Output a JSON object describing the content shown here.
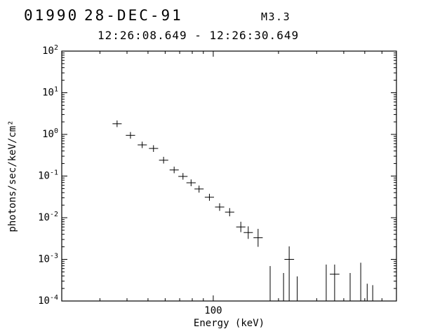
{
  "header": {
    "burst_id": "01990",
    "date": "28-DEC-91",
    "flare_class": "M3.3",
    "time_interval": "12:26:08.649 - 12:26:30.649"
  },
  "chart_data": {
    "type": "scatter",
    "title": "",
    "xlabel": "Energy (keV)",
    "ylabel": "photons/sec/keV/cm²",
    "xscale": "log",
    "yscale": "log",
    "xlim": [
      20,
      700
    ],
    "ylim": [
      0.0001,
      100.0
    ],
    "grid": false,
    "x_major_ticks": [
      100
    ],
    "y_tick_exponents": [
      2,
      1,
      0,
      -1,
      -2,
      -3,
      -4
    ],
    "marker": "plus-with-error-bars",
    "line_color": "#000000",
    "points": [
      {
        "e": 36.0,
        "e_lo": 34.3,
        "e_hi": 37.8,
        "f": 1.8,
        "f_lo": 1.5,
        "f_hi": 2.16
      },
      {
        "e": 41.5,
        "e_lo": 39.5,
        "e_hi": 43.6,
        "f": 0.95,
        "f_lo": 0.79,
        "f_hi": 1.14
      },
      {
        "e": 47.0,
        "e_lo": 44.8,
        "e_hi": 49.4,
        "f": 0.56,
        "f_lo": 0.47,
        "f_hi": 0.67
      },
      {
        "e": 53.0,
        "e_lo": 50.5,
        "e_hi": 55.7,
        "f": 0.46,
        "f_lo": 0.38,
        "f_hi": 0.55
      },
      {
        "e": 59.0,
        "e_lo": 56.2,
        "e_hi": 62.0,
        "f": 0.24,
        "f_lo": 0.2,
        "f_hi": 0.29
      },
      {
        "e": 66.0,
        "e_lo": 62.9,
        "e_hi": 69.3,
        "f": 0.14,
        "f_lo": 0.117,
        "f_hi": 0.168
      },
      {
        "e": 72.5,
        "e_lo": 69.0,
        "e_hi": 76.1,
        "f": 0.098,
        "f_lo": 0.082,
        "f_hi": 0.118
      },
      {
        "e": 79.0,
        "e_lo": 75.2,
        "e_hi": 83.0,
        "f": 0.069,
        "f_lo": 0.057,
        "f_hi": 0.083
      },
      {
        "e": 86.0,
        "e_lo": 81.9,
        "e_hi": 90.3,
        "f": 0.049,
        "f_lo": 0.04,
        "f_hi": 0.059
      },
      {
        "e": 96.0,
        "e_lo": 91.4,
        "e_hi": 100.8,
        "f": 0.031,
        "f_lo": 0.0255,
        "f_hi": 0.0375
      },
      {
        "e": 107.0,
        "e_lo": 101.9,
        "e_hi": 112.4,
        "f": 0.018,
        "f_lo": 0.0146,
        "f_hi": 0.0222
      },
      {
        "e": 119.0,
        "e_lo": 113.3,
        "e_hi": 125.0,
        "f": 0.0136,
        "f_lo": 0.0108,
        "f_hi": 0.017
      },
      {
        "e": 134.0,
        "e_lo": 127.6,
        "e_hi": 140.7,
        "f": 0.006,
        "f_lo": 0.0045,
        "f_hi": 0.008
      },
      {
        "e": 145.0,
        "e_lo": 138.1,
        "e_hi": 152.3,
        "f": 0.0044,
        "f_lo": 0.0031,
        "f_hi": 0.0062
      },
      {
        "e": 161.0,
        "e_lo": 153.3,
        "e_hi": 169.1,
        "f": 0.0033,
        "f_lo": 0.002,
        "f_hi": 0.0054
      }
    ],
    "upper_limits": [
      {
        "e": 183,
        "top": 0.00069,
        "bottom": 0.0001
      },
      {
        "e": 211,
        "top": 0.00047,
        "bottom": 0.0001
      },
      {
        "e": 224,
        "f": 0.001,
        "e_lo": 213,
        "e_hi": 236,
        "top": 0.00205,
        "bottom": 0.0001
      },
      {
        "e": 244,
        "top": 0.00039,
        "bottom": 0.0001
      },
      {
        "e": 332,
        "top": 0.00075,
        "bottom": 0.0001
      },
      {
        "e": 363,
        "f": 0.00044,
        "e_lo": 345,
        "e_hi": 382,
        "top": 0.00075,
        "bottom": 0.0001
      },
      {
        "e": 428,
        "top": 0.00047,
        "bottom": 0.0001
      },
      {
        "e": 479,
        "top": 0.00083,
        "bottom": 0.0001
      },
      {
        "e": 513,
        "top": 0.00026,
        "bottom": 0.0001
      },
      {
        "e": 544,
        "top": 0.00024,
        "bottom": 0.0001
      }
    ]
  }
}
